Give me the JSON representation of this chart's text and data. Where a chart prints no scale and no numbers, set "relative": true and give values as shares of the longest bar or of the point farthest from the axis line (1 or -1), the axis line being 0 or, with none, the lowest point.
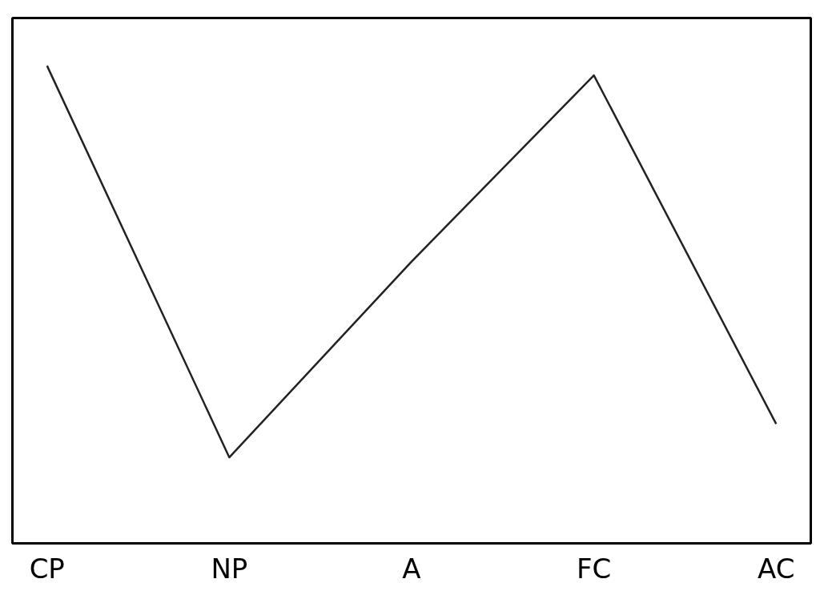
{
  "chart_data": {
    "type": "line",
    "relative": true,
    "categories": [
      "CP",
      "NP",
      "A",
      "FC",
      "AC"
    ],
    "series": [
      {
        "color": "#222222",
        "values": [
          1,
          0.18,
          0.59,
          0.98,
          0.25
        ]
      }
    ],
    "grid": false,
    "marker": "none",
    "line_style": "solid",
    "tick_labels": "x"
  }
}
